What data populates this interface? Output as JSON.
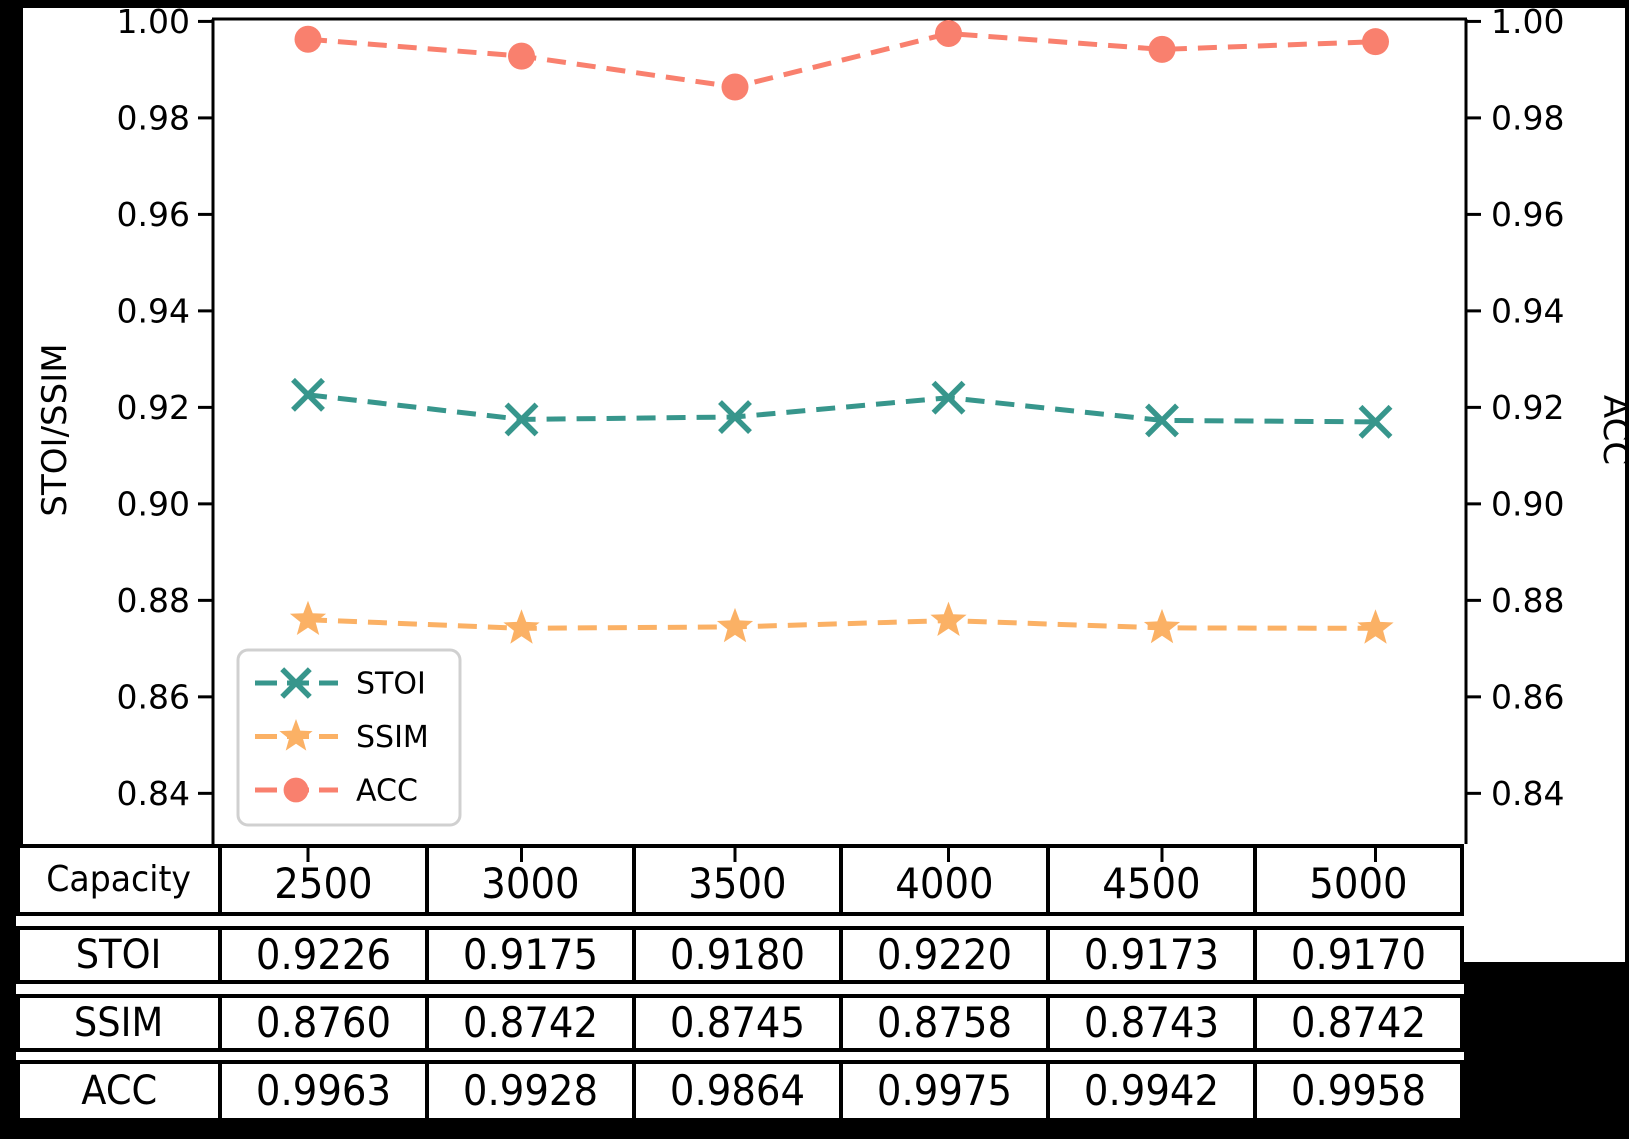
{
  "chart_data": {
    "type": "line",
    "x_name": "Capacity",
    "x": [
      2500,
      3000,
      3500,
      4000,
      4500,
      5000
    ],
    "series": [
      {
        "name": "STOI",
        "marker": "x",
        "color": "#37968C",
        "values": [
          0.9226,
          0.9175,
          0.918,
          0.922,
          0.9173,
          0.917
        ]
      },
      {
        "name": "SSIM",
        "marker": "star",
        "color": "#FBB165",
        "values": [
          0.876,
          0.8742,
          0.8745,
          0.8758,
          0.8743,
          0.8742
        ]
      },
      {
        "name": "ACC",
        "marker": "circle",
        "color": "#F9806E",
        "values": [
          0.9963,
          0.9928,
          0.9864,
          0.9975,
          0.9942,
          0.9958
        ]
      }
    ],
    "ylabel_left": "STOI/SSIM",
    "ylabel_right": "ACC",
    "yticks": [
      "1.00",
      "0.98",
      "0.96",
      "0.94",
      "0.92",
      "0.90",
      "0.88",
      "0.86",
      "0.84"
    ],
    "ylim": [
      0.8295,
      1.0005
    ],
    "line_style": "dashed",
    "grid": false,
    "legend": {
      "entries": [
        "STOI",
        "SSIM",
        "ACC"
      ],
      "position": "lower left"
    }
  },
  "table": {
    "corner_label": "Capacity",
    "columns": [
      "2500",
      "3000",
      "3500",
      "4000",
      "4500",
      "5000"
    ],
    "rows": [
      {
        "label": "STOI",
        "cells": [
          "0.9226",
          "0.9175",
          "0.9180",
          "0.9220",
          "0.9173",
          "0.9170"
        ]
      },
      {
        "label": "SSIM",
        "cells": [
          "0.8760",
          "0.8742",
          "0.8745",
          "0.8758",
          "0.8743",
          "0.8742"
        ]
      },
      {
        "label": "ACC",
        "cells": [
          "0.9963",
          "0.9928",
          "0.9864",
          "0.9975",
          "0.9942",
          "0.9958"
        ]
      }
    ]
  },
  "colors": {
    "page_background": "#000000",
    "figure_background": "#ffffff",
    "axis": "#000000",
    "legend_border": "#d0d0d0",
    "stoi": "#37968C",
    "ssim": "#FBB165",
    "acc": "#F9806E"
  }
}
